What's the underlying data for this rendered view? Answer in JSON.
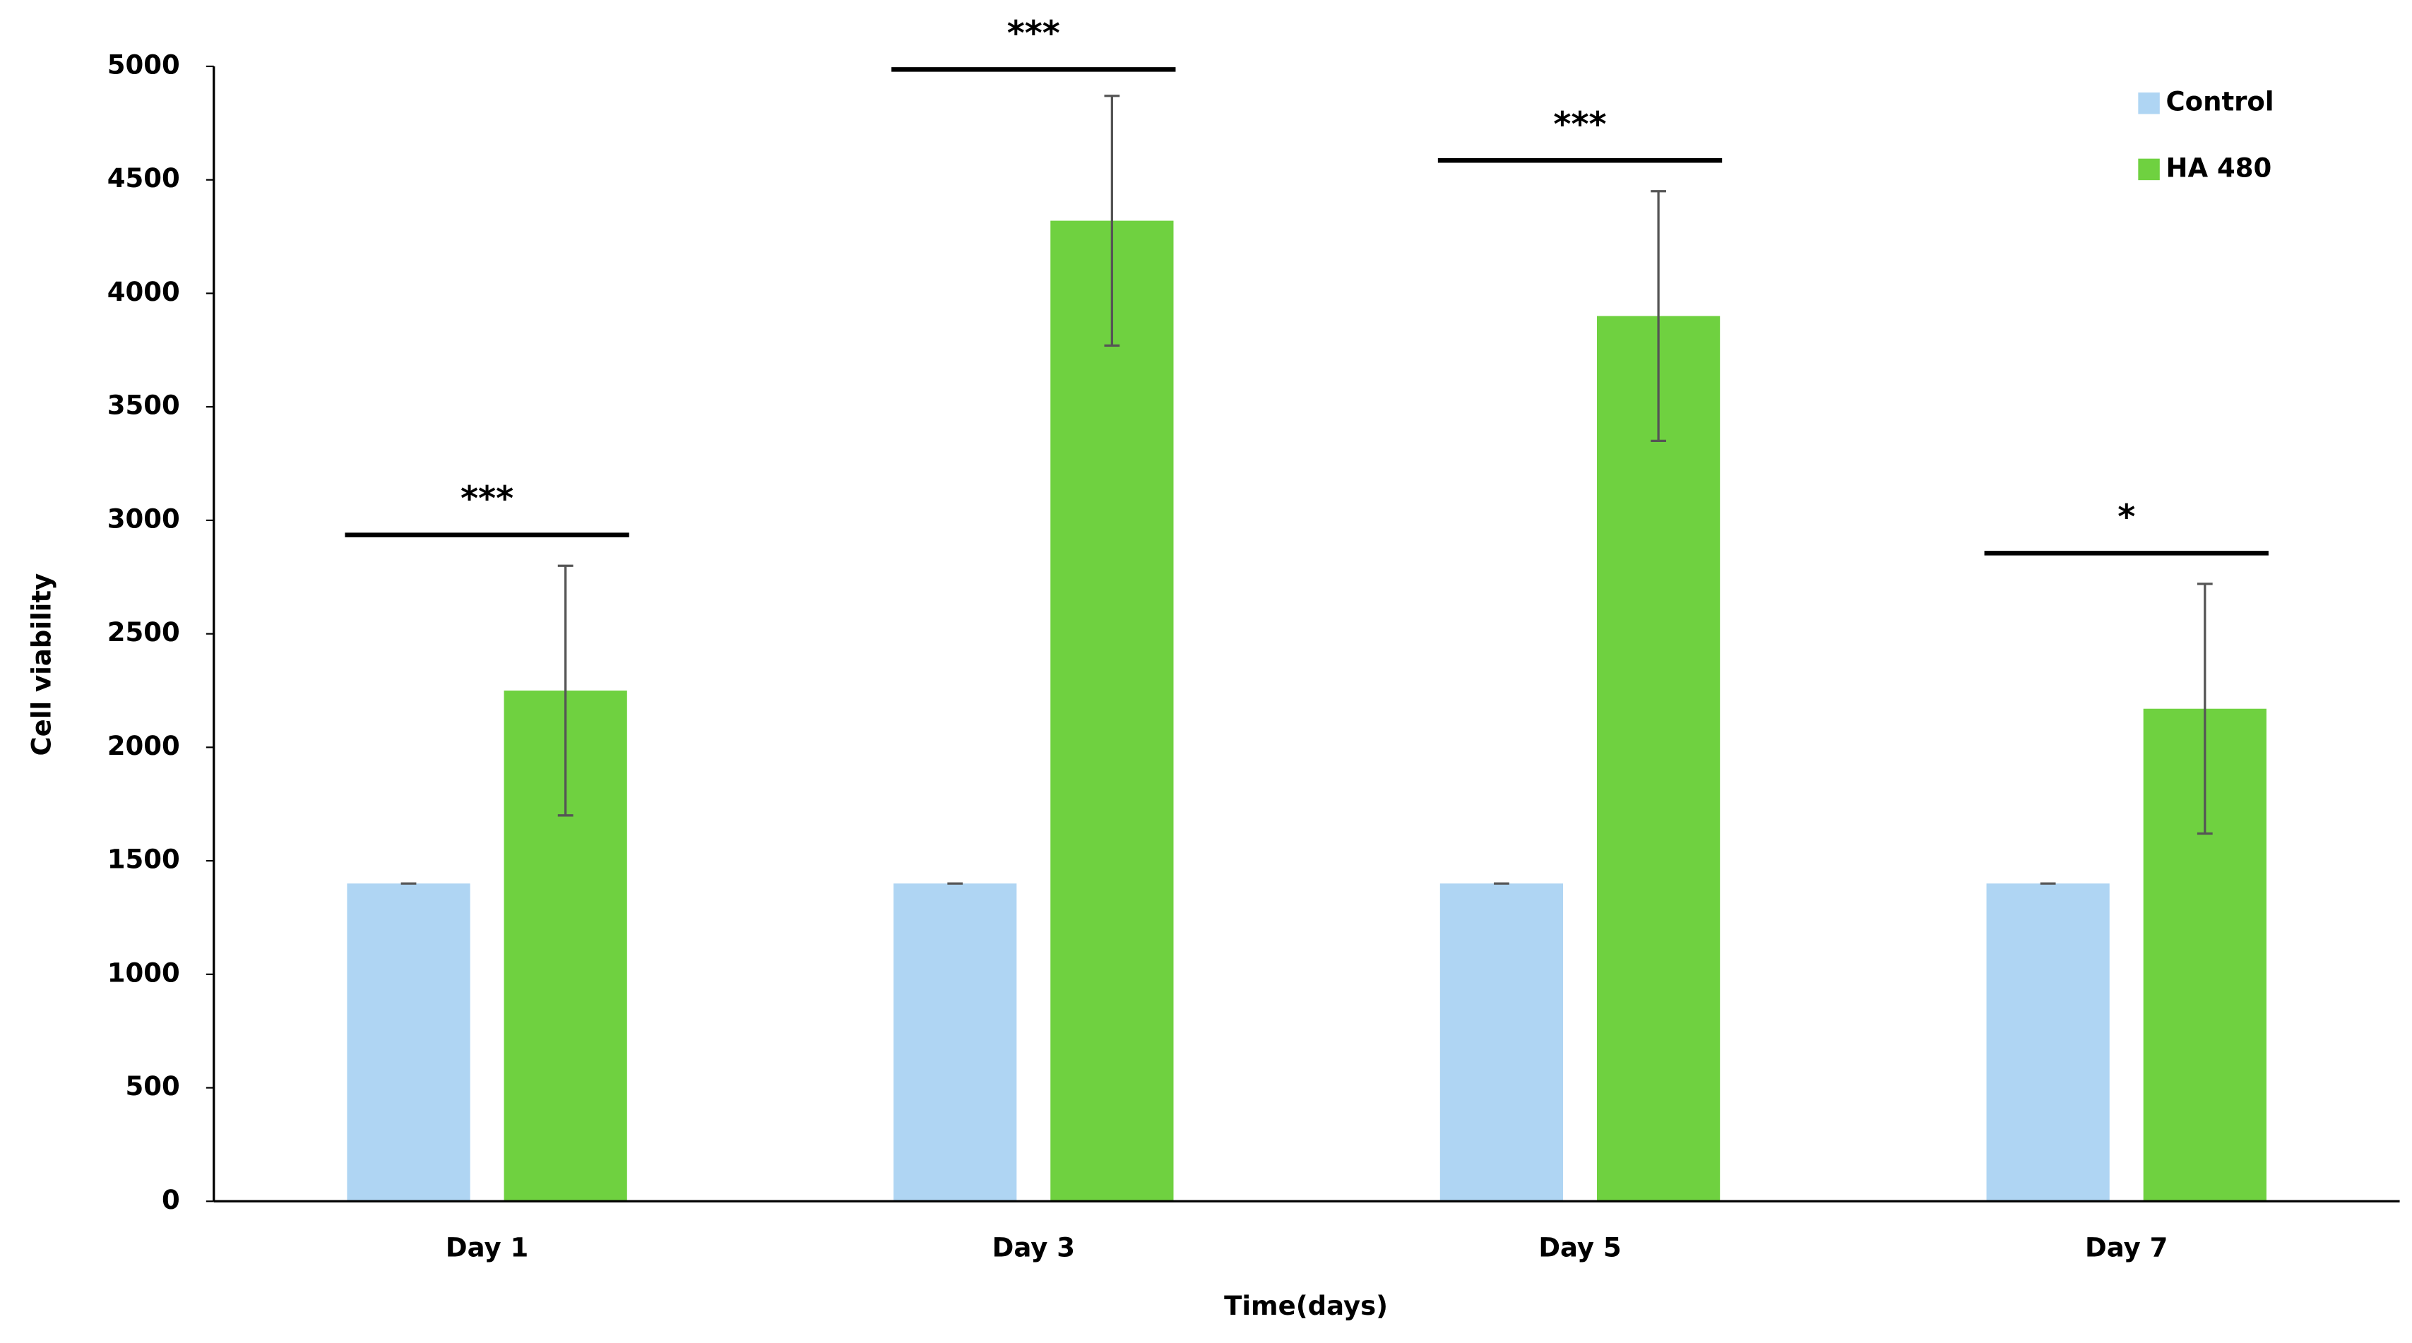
{
  "chart_data": {
    "type": "bar",
    "x_label": "Time(days)",
    "y_label": "Cell viability",
    "categories": [
      "Day 1",
      "Day 3",
      "Day 5",
      "Day 7"
    ],
    "series": [
      {
        "name": "Control",
        "color": "#afd5f3",
        "values": [
          1400,
          1400,
          1400,
          1400
        ],
        "errors": [
          0,
          0,
          0,
          0
        ]
      },
      {
        "name": "HA 480",
        "color": "#6fd140",
        "values": [
          2250,
          4320,
          3900,
          2170
        ],
        "errors": [
          550,
          550,
          550,
          550
        ]
      }
    ],
    "significance": [
      "***",
      "***",
      "***",
      "*"
    ],
    "ylim": [
      0,
      5000
    ],
    "yticks": [
      0,
      500,
      1000,
      1500,
      2000,
      2500,
      3000,
      3500,
      4000,
      4500,
      5000
    ],
    "grid": false,
    "legend": "top-right"
  }
}
